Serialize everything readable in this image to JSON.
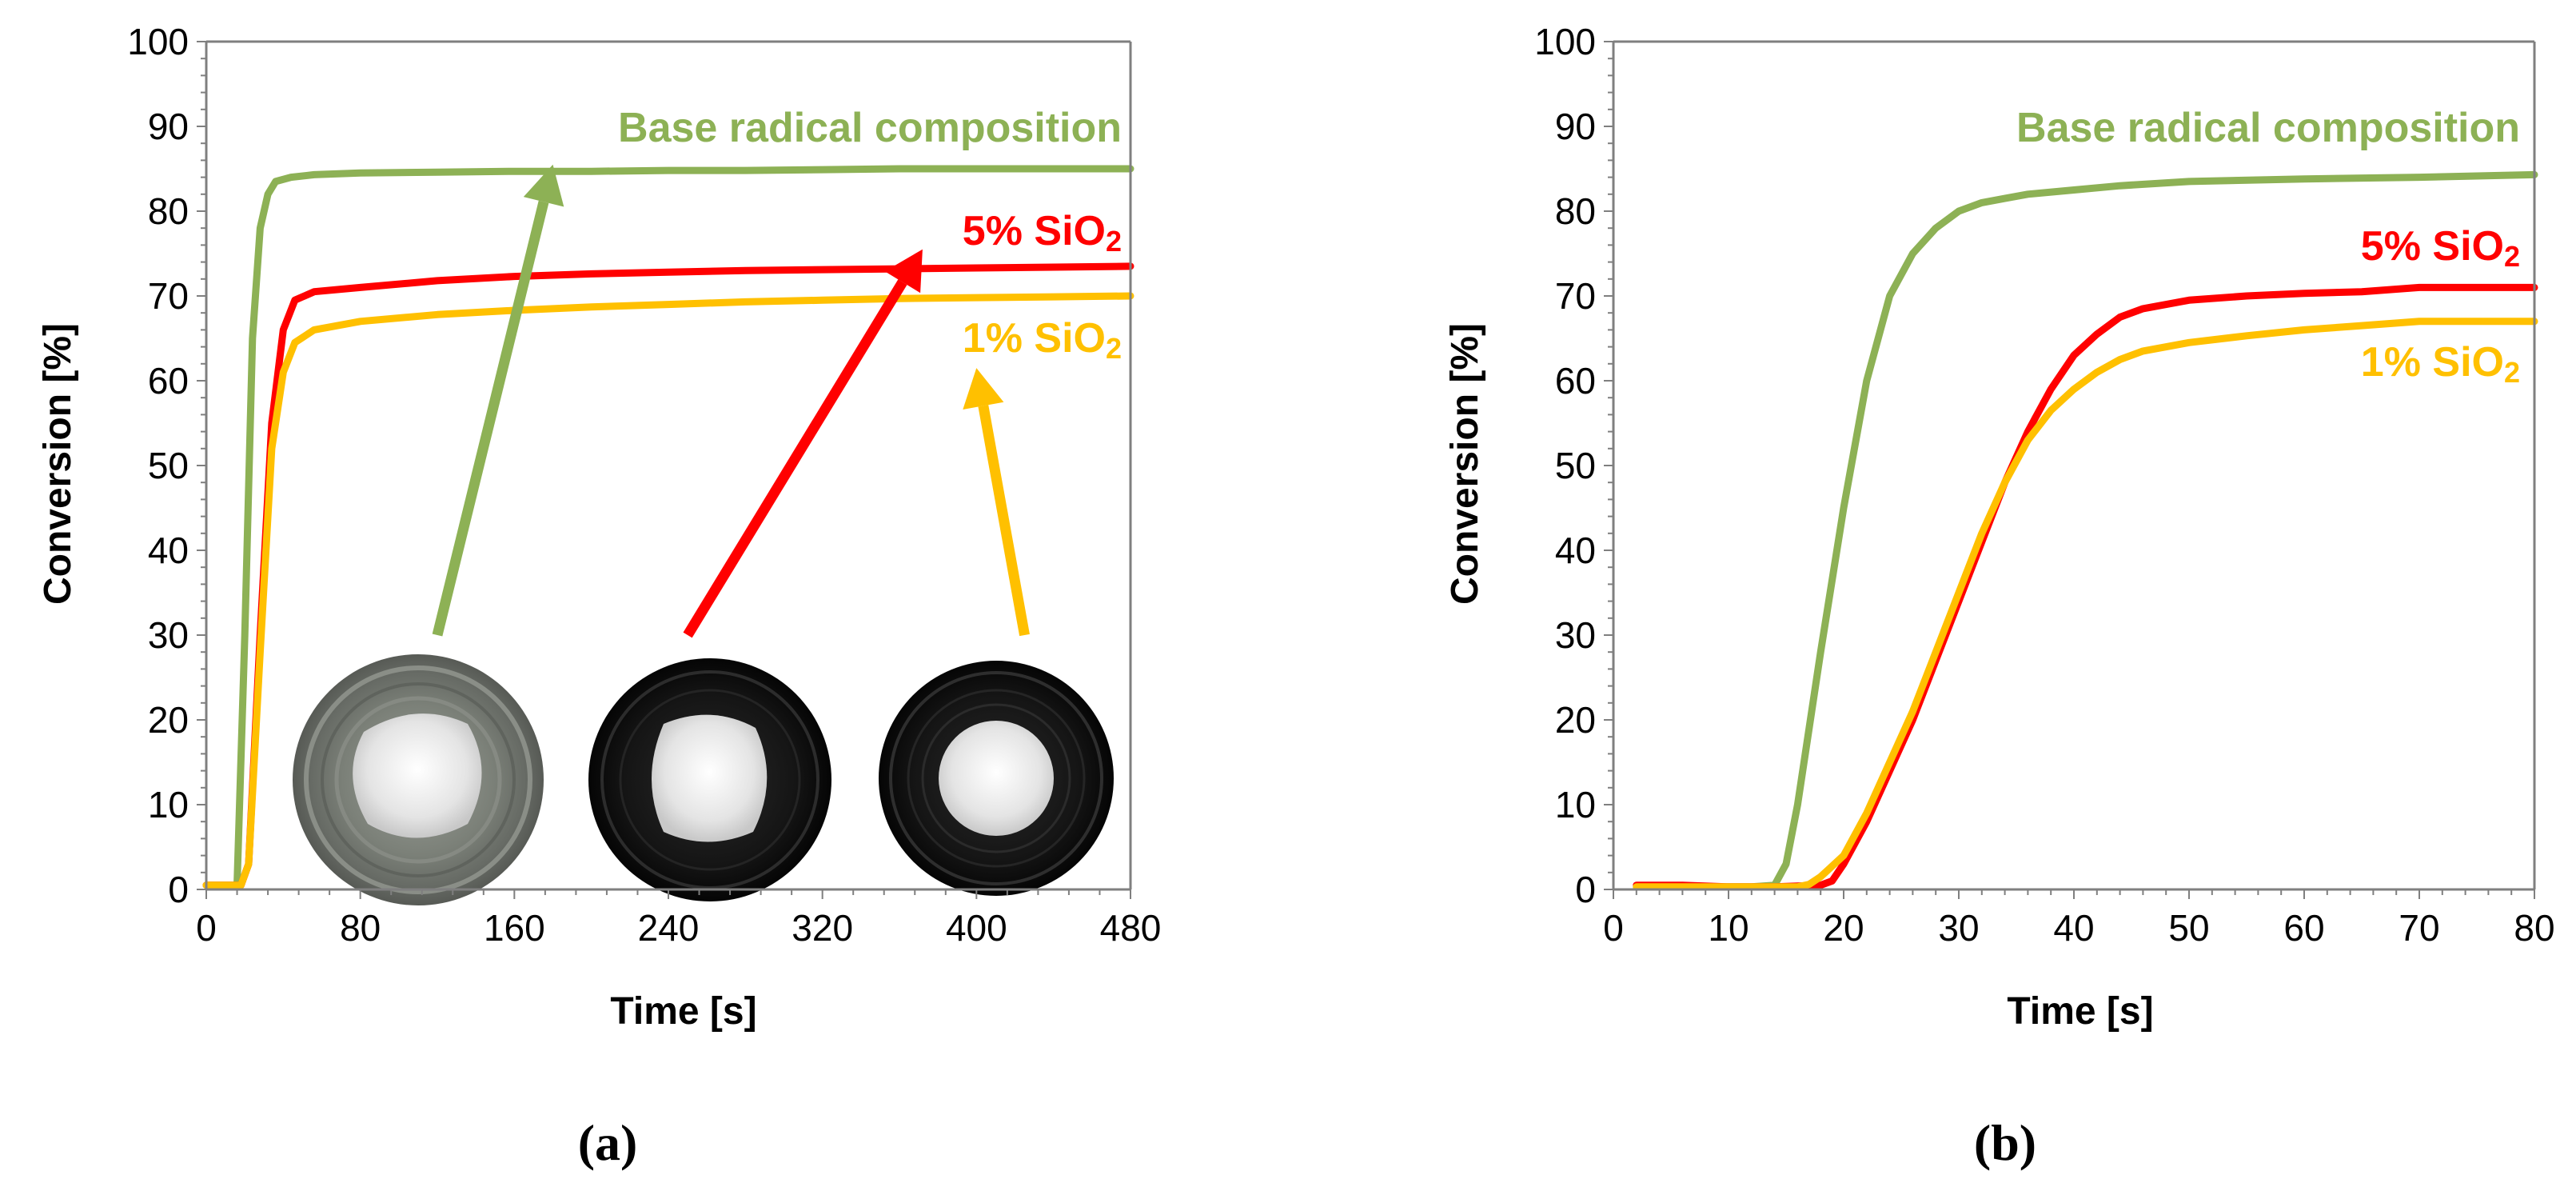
{
  "chart_data": [
    {
      "type": "line",
      "panel_label": "(a)",
      "xlabel": "Time [s]",
      "ylabel": "Conversion [%]",
      "xlim": [
        0,
        480
      ],
      "ylim": [
        0,
        100
      ],
      "xticks": [
        0,
        80,
        160,
        240,
        320,
        400,
        480
      ],
      "yticks": [
        0,
        10,
        20,
        30,
        40,
        50,
        60,
        70,
        80,
        90,
        100
      ],
      "grid": false,
      "series": [
        {
          "name": "Base radical composition",
          "label_main": "Base radical composition",
          "label_sub": "",
          "color": "#8DB155",
          "x": [
            0,
            16,
            20,
            24,
            28,
            32,
            36,
            44,
            56,
            80,
            120,
            160,
            200,
            240,
            280,
            320,
            360,
            400,
            440,
            480
          ],
          "y": [
            0.5,
            0.5,
            30,
            65,
            78,
            82,
            83.5,
            84,
            84.3,
            84.5,
            84.6,
            84.7,
            84.7,
            84.8,
            84.8,
            84.9,
            85,
            85,
            85,
            85
          ]
        },
        {
          "name": "5% SiO2",
          "label_main": "5% SiO",
          "label_sub": "2",
          "color": "#FF0000",
          "x": [
            0,
            18,
            22,
            28,
            34,
            40,
            46,
            56,
            80,
            120,
            160,
            200,
            240,
            280,
            320,
            360,
            400,
            440,
            480
          ],
          "y": [
            0.5,
            0.5,
            3,
            30,
            55,
            66,
            69.5,
            70.5,
            71,
            71.8,
            72.3,
            72.6,
            72.8,
            73,
            73.1,
            73.2,
            73.3,
            73.4,
            73.5
          ]
        },
        {
          "name": "1% SiO2",
          "label_main": "1% SiO",
          "label_sub": "2",
          "color": "#FFC000",
          "x": [
            0,
            18,
            22,
            28,
            34,
            40,
            46,
            56,
            80,
            120,
            160,
            200,
            240,
            280,
            320,
            360,
            400,
            440,
            480
          ],
          "y": [
            0.5,
            0.5,
            3,
            28,
            52,
            61,
            64.5,
            66,
            67,
            67.8,
            68.3,
            68.7,
            69,
            69.3,
            69.5,
            69.7,
            69.8,
            69.9,
            70
          ]
        }
      ],
      "annotations": [
        {
          "type": "arrow",
          "series": "Base radical composition",
          "points_to": [
            180,
            85.5
          ],
          "from": [
            120,
            30
          ],
          "color": "#8DB155"
        },
        {
          "type": "arrow",
          "series": "5% SiO2",
          "points_to": [
            372,
            75.5
          ],
          "from": [
            250,
            30
          ],
          "color": "#FF0000"
        },
        {
          "type": "arrow",
          "series": "1% SiO2",
          "points_to": [
            400,
            61.5
          ],
          "from": [
            425,
            30
          ],
          "color": "#FFC000"
        }
      ],
      "inset_images": [
        {
          "name": "base-sample-photo",
          "style": "gray",
          "at": [
            115,
            14.5
          ]
        },
        {
          "name": "sio2-5-sample-photo",
          "style": "black",
          "at": [
            262,
            14.5
          ]
        },
        {
          "name": "sio2-1-sample-photo",
          "style": "black",
          "at": [
            415,
            14.5
          ]
        }
      ]
    },
    {
      "type": "line",
      "panel_label": "(b)",
      "xlabel": "Time [s]",
      "ylabel": "Conversion [%]",
      "xlim": [
        0,
        80
      ],
      "ylim": [
        0,
        100
      ],
      "xticks": [
        0,
        10,
        20,
        30,
        40,
        50,
        60,
        70,
        80
      ],
      "yticks": [
        0,
        10,
        20,
        30,
        40,
        50,
        60,
        70,
        80,
        90,
        100
      ],
      "grid": false,
      "series": [
        {
          "name": "Base radical composition",
          "label_main": "Base radical composition",
          "label_sub": "",
          "color": "#8DB155",
          "x": [
            2,
            12,
            14,
            15,
            16,
            18,
            20,
            22,
            24,
            26,
            28,
            30,
            32,
            34,
            36,
            40,
            44,
            50,
            60,
            70,
            80
          ],
          "y": [
            0.3,
            0.3,
            0.5,
            3,
            10,
            28,
            45,
            60,
            70,
            75,
            78,
            80,
            81,
            81.5,
            82,
            82.5,
            83,
            83.5,
            83.8,
            84,
            84.3
          ]
        },
        {
          "name": "5% SiO2",
          "label_main": "5% SiO",
          "label_sub": "2",
          "color": "#FF0000",
          "x": [
            2,
            6,
            10,
            14,
            18,
            19,
            20,
            22,
            24,
            26,
            28,
            30,
            32,
            34,
            36,
            38,
            40,
            42,
            44,
            46,
            50,
            55,
            60,
            65,
            70,
            75,
            80
          ],
          "y": [
            0.5,
            0.5,
            0.3,
            0.3,
            0.5,
            1,
            3,
            8,
            14,
            20,
            27,
            34,
            41,
            48,
            54,
            59,
            63,
            65.5,
            67.5,
            68.5,
            69.5,
            70,
            70.3,
            70.5,
            71,
            71,
            71
          ]
        },
        {
          "name": "1% SiO2",
          "label_main": "1% SiO",
          "label_sub": "2",
          "color": "#FFC000",
          "x": [
            2,
            10,
            16,
            17,
            18,
            20,
            22,
            24,
            26,
            28,
            30,
            32,
            34,
            36,
            38,
            40,
            42,
            44,
            46,
            50,
            55,
            60,
            65,
            70,
            75,
            80
          ],
          "y": [
            0.3,
            0.3,
            0.3,
            0.6,
            1.5,
            4,
            9,
            15,
            21,
            28,
            35,
            42,
            48,
            53,
            56.5,
            59,
            61,
            62.5,
            63.5,
            64.5,
            65.3,
            66,
            66.5,
            67,
            67,
            67
          ]
        }
      ]
    }
  ]
}
